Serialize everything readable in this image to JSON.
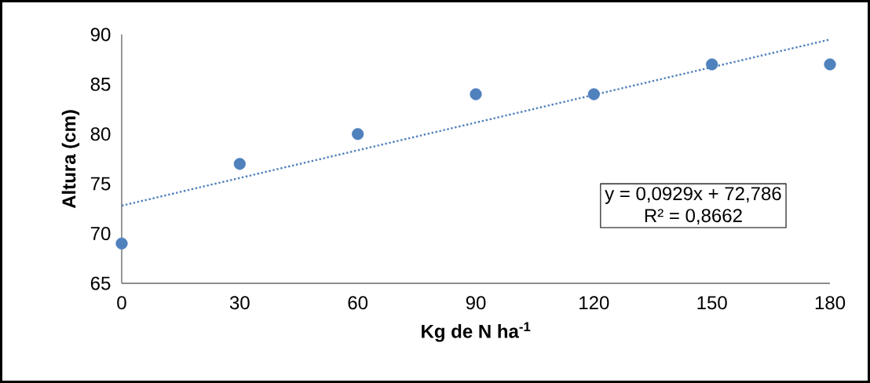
{
  "chart_data": {
    "type": "scatter",
    "xlabel": "Kg de N ha$^{-1}$",
    "ylabel": "Altura (cm)",
    "x": [
      0,
      30,
      60,
      90,
      120,
      150,
      180
    ],
    "series": [
      {
        "color": "#4f81bd",
        "values": [
          69,
          77,
          80,
          84,
          84,
          87,
          87
        ],
        "marker": "circle"
      },
      {
        "type": "line",
        "color": "#4f81bd",
        "x": [
          0,
          180
        ],
        "values": [
          72.8,
          89.5
        ],
        "line_style": "dotted",
        "marker": "none"
      }
    ],
    "xlim": [
      0,
      180
    ],
    "ylim": [
      65,
      90
    ],
    "xticks": [
      0,
      30,
      60,
      90,
      120,
      150,
      180
    ],
    "yticks": [
      65,
      70,
      75,
      80,
      85,
      90
    ],
    "annotations": [
      "y = 0,0929x + 72,786",
      "R² = 0,8662"
    ],
    "grid": false
  }
}
